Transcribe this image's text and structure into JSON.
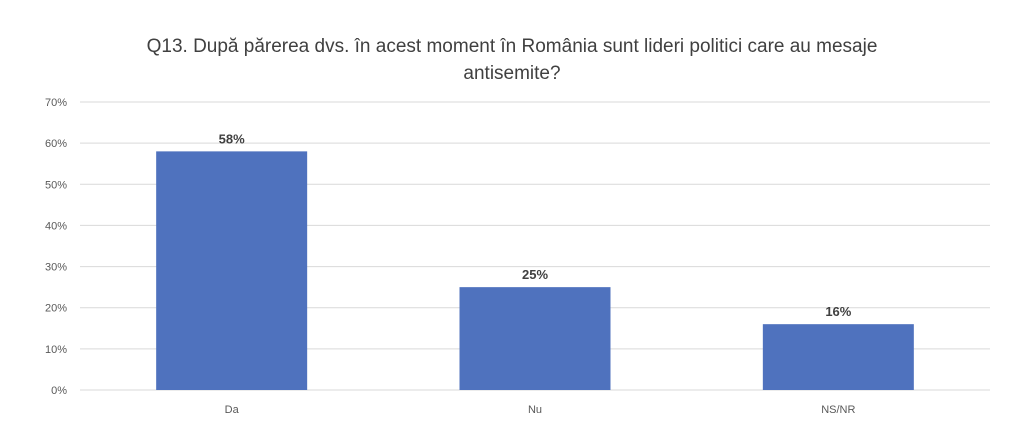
{
  "chart_data": {
    "type": "bar",
    "title": "Q13. După părerea dvs. în acest moment în România sunt lideri politici care au mesaje antisemite?",
    "categories": [
      "Da",
      "Nu",
      "NS/NR"
    ],
    "values": [
      58,
      25,
      16
    ],
    "value_labels": [
      "58%",
      "25%",
      "16%"
    ],
    "ylim": [
      0,
      70
    ],
    "yticks": [
      0,
      10,
      20,
      30,
      40,
      50,
      60,
      70
    ],
    "ytick_labels": [
      "0%",
      "10%",
      "20%",
      "30%",
      "40%",
      "50%",
      "60%",
      "70%"
    ],
    "xlabel": "",
    "ylabel": "",
    "grid": true,
    "legend": "none",
    "bar_color": "#4F72BE",
    "grid_color": "#D9D9D9",
    "text_color": "#595959"
  }
}
